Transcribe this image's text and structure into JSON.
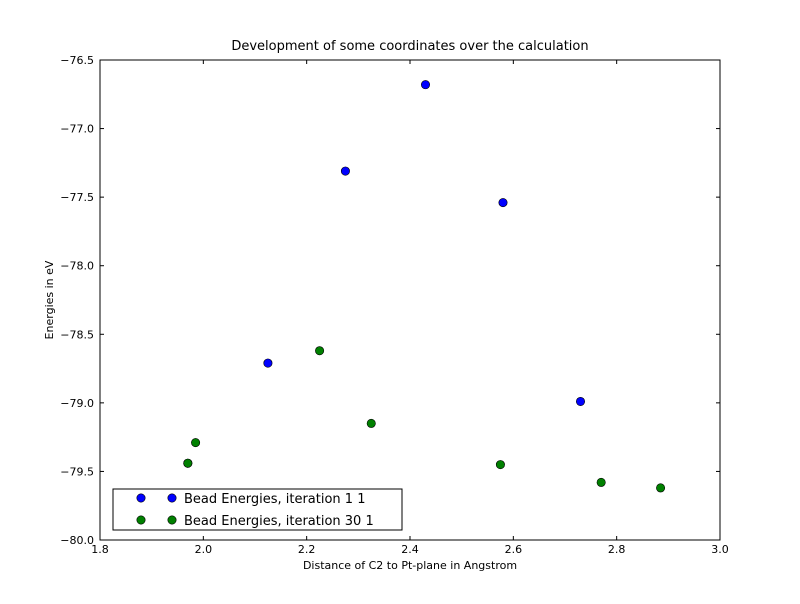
{
  "chart_data": {
    "type": "scatter",
    "title": "Development of some coordinates over the calculation",
    "xlabel": "Distance of C2 to Pt-plane in Angstrom",
    "ylabel": "Energies in eV",
    "xlim": [
      1.8,
      3.0
    ],
    "ylim": [
      -80.0,
      -76.5
    ],
    "xticks": [
      "1.8",
      "2.0",
      "2.2",
      "2.4",
      "2.6",
      "2.8",
      "3.0"
    ],
    "yticks": [
      "−76.5",
      "−77.0",
      "−77.5",
      "−78.0",
      "−78.5",
      "−79.0",
      "−79.5",
      "−80.0"
    ],
    "grid": false,
    "legend_position": "lower-left",
    "series": [
      {
        "name": "Bead Energies, iteration 1 1",
        "color": "#0000ff",
        "points": [
          {
            "x": 1.97,
            "y": -79.44
          },
          {
            "x": 2.125,
            "y": -78.71
          },
          {
            "x": 2.275,
            "y": -77.31
          },
          {
            "x": 2.43,
            "y": -76.68
          },
          {
            "x": 2.58,
            "y": -77.54
          },
          {
            "x": 2.73,
            "y": -78.99
          }
        ]
      },
      {
        "name": "Bead Energies, iteration 30 1",
        "color": "#008000",
        "points": [
          {
            "x": 1.97,
            "y": -79.44
          },
          {
            "x": 1.985,
            "y": -79.29
          },
          {
            "x": 2.225,
            "y": -78.62
          },
          {
            "x": 2.325,
            "y": -79.15
          },
          {
            "x": 2.575,
            "y": -79.45
          },
          {
            "x": 2.77,
            "y": -79.58
          },
          {
            "x": 2.885,
            "y": -79.62
          }
        ]
      }
    ]
  }
}
